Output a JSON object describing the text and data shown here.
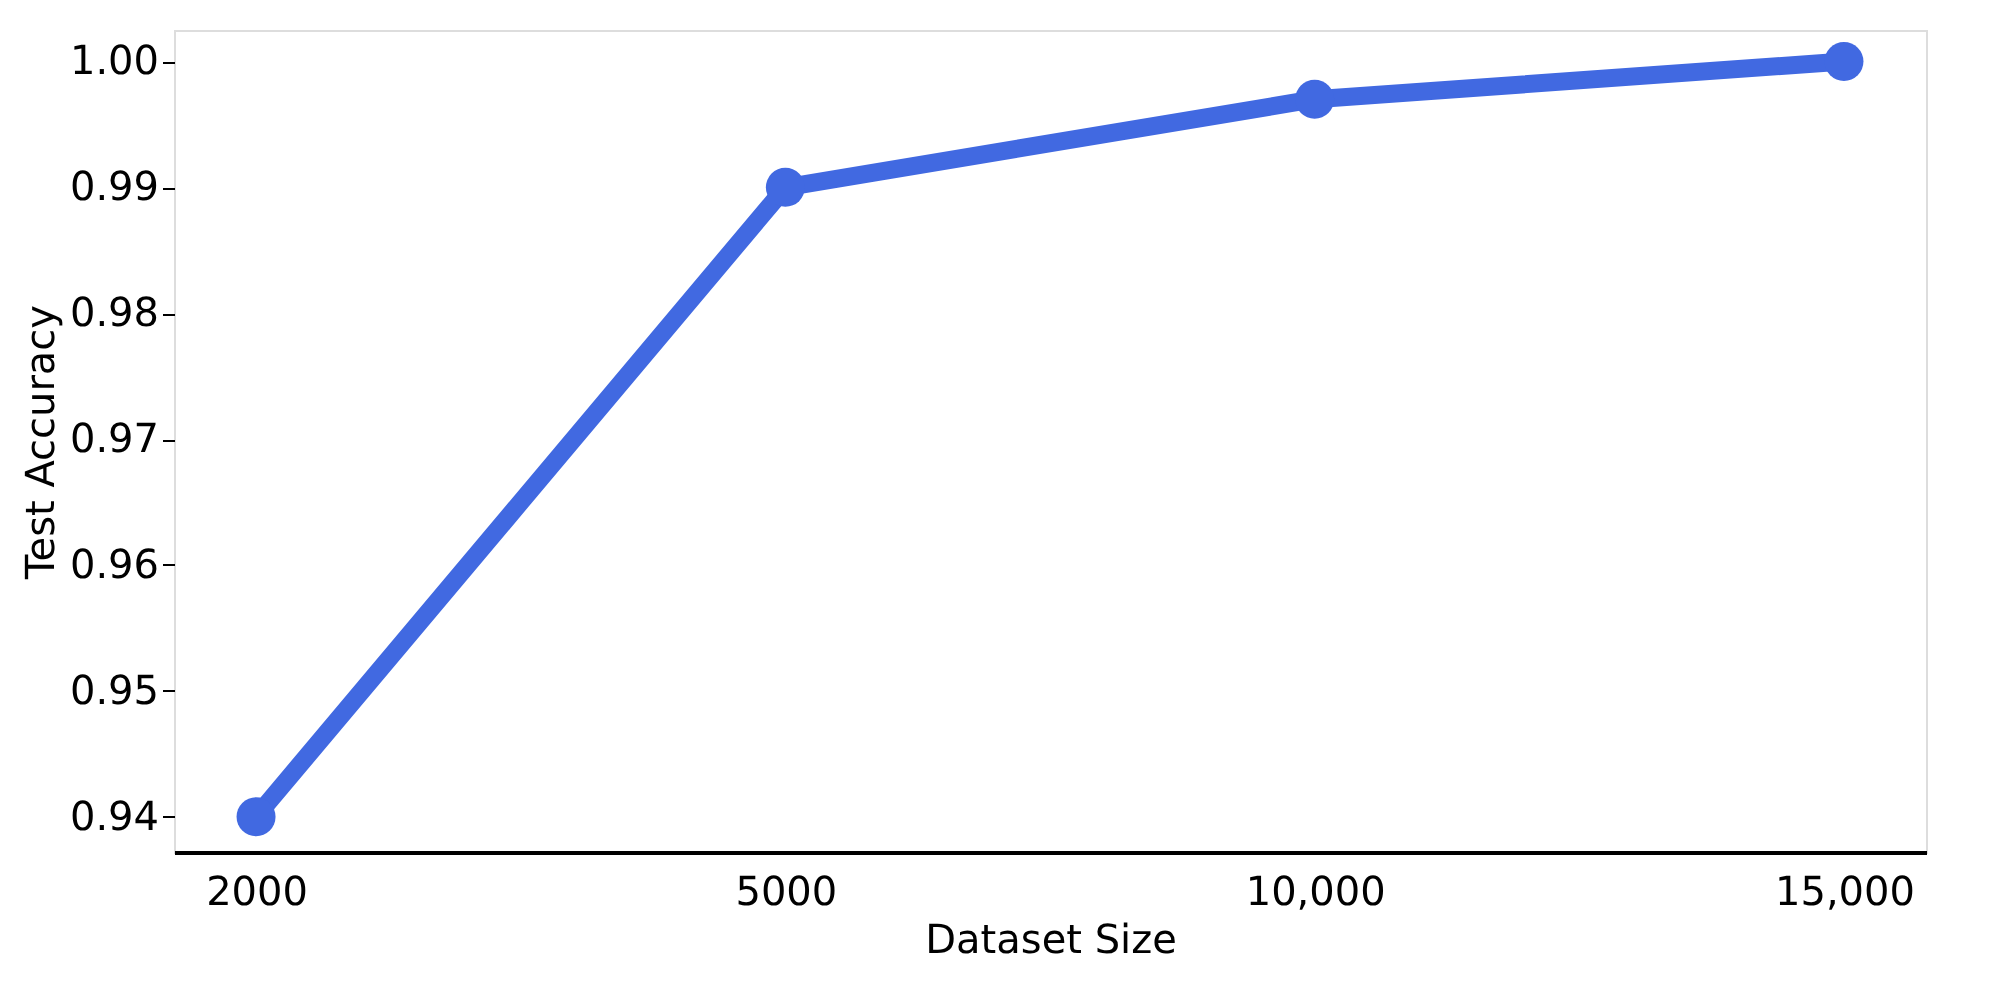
{
  "chart_data": {
    "type": "line",
    "xlabel": "Dataset Size",
    "ylabel": "Test Accuracy",
    "categories": [
      "2000",
      "5000",
      "10,000",
      "15,000"
    ],
    "series": [
      {
        "color": "#4169e1",
        "values": [
          0.94,
          0.99,
          0.997,
          1.0
        ]
      }
    ],
    "ylim": [
      0.9372,
      1.0025
    ],
    "yticks": [
      0.94,
      0.95,
      0.96,
      0.97,
      0.98,
      0.99,
      {
        "value": 1.0,
        "label": "1.00"
      }
    ],
    "marker": "circle",
    "line_style": "solid",
    "grid": false
  }
}
